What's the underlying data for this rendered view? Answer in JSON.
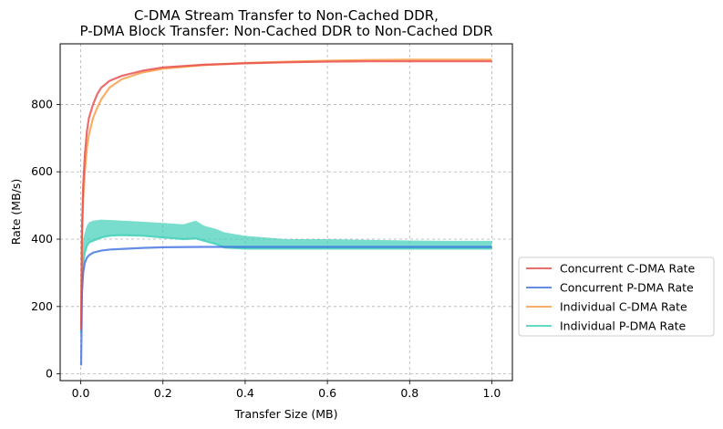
{
  "chart_data": {
    "type": "line",
    "title": [
      "C-DMA Stream Transfer to Non-Cached DDR,",
      "P-DMA Block Transfer: Non-Cached DDR to Non-Cached DDR"
    ],
    "xlabel": "Transfer Size (MB)",
    "ylabel": "Rate (MB/s)",
    "xlim": [
      -0.05,
      1.05
    ],
    "ylim": [
      -20,
      980
    ],
    "xticks": [
      0.0,
      0.2,
      0.4,
      0.6,
      0.8,
      1.0
    ],
    "xtick_labels": [
      "0.0",
      "0.2",
      "0.4",
      "0.6",
      "0.8",
      "1.0"
    ],
    "yticks": [
      0,
      200,
      400,
      600,
      800
    ],
    "ytick_labels": [
      "0",
      "200",
      "400",
      "600",
      "800"
    ],
    "grid": true,
    "legend_position": "outside-right",
    "series": [
      {
        "name": "Concurrent C-DMA Rate",
        "color": "#e8474a",
        "x": [
          0.001,
          0.003,
          0.006,
          0.01,
          0.015,
          0.02,
          0.03,
          0.04,
          0.05,
          0.07,
          0.1,
          0.15,
          0.2,
          0.3,
          0.4,
          0.5,
          0.6,
          0.7,
          0.8,
          0.9,
          1.0
        ],
        "y": [
          130,
          420,
          560,
          650,
          720,
          760,
          800,
          830,
          850,
          870,
          885,
          900,
          910,
          918,
          922,
          925,
          927,
          928,
          928,
          928,
          928
        ]
      },
      {
        "name": "Concurrent P-DMA Rate",
        "color": "#3d6fe0",
        "x": [
          0.001,
          0.003,
          0.006,
          0.01,
          0.015,
          0.02,
          0.03,
          0.05,
          0.07,
          0.1,
          0.15,
          0.2,
          0.3,
          0.4,
          0.5,
          0.6,
          0.7,
          0.8,
          0.9,
          1.0
        ],
        "y": [
          25,
          240,
          300,
          330,
          345,
          352,
          360,
          366,
          369,
          371,
          374,
          376,
          377,
          377,
          377,
          377,
          377,
          377,
          377,
          377
        ]
      },
      {
        "name": "Individual C-DMA Rate",
        "color": "#f79a40",
        "x": [
          0.001,
          0.003,
          0.006,
          0.01,
          0.015,
          0.02,
          0.03,
          0.04,
          0.05,
          0.07,
          0.1,
          0.15,
          0.2,
          0.3,
          0.4,
          0.5,
          0.6,
          0.7,
          0.8,
          0.9,
          1.0
        ],
        "y": [
          150,
          400,
          520,
          600,
          670,
          710,
          760,
          790,
          815,
          850,
          875,
          895,
          906,
          917,
          923,
          927,
          930,
          932,
          933,
          933,
          933
        ]
      },
      {
        "name": "Individual P-DMA Rate",
        "color": "#40cfb8",
        "x": [
          0.001,
          0.003,
          0.006,
          0.01,
          0.015,
          0.02,
          0.03,
          0.05,
          0.07,
          0.1,
          0.15,
          0.2,
          0.25,
          0.28,
          0.3,
          0.33,
          0.35,
          0.4,
          0.5,
          0.6,
          0.7,
          0.8,
          0.9,
          1.0
        ],
        "y": [
          120,
          280,
          330,
          360,
          380,
          390,
          395,
          405,
          410,
          412,
          410,
          405,
          400,
          402,
          395,
          385,
          375,
          372,
          372,
          372,
          372,
          372,
          372,
          372
        ],
        "upper": [
          120,
          330,
          400,
          420,
          440,
          450,
          455,
          458,
          457,
          455,
          452,
          448,
          444,
          455,
          440,
          430,
          420,
          410,
          400,
          400,
          398,
          396,
          395,
          395
        ]
      }
    ]
  }
}
